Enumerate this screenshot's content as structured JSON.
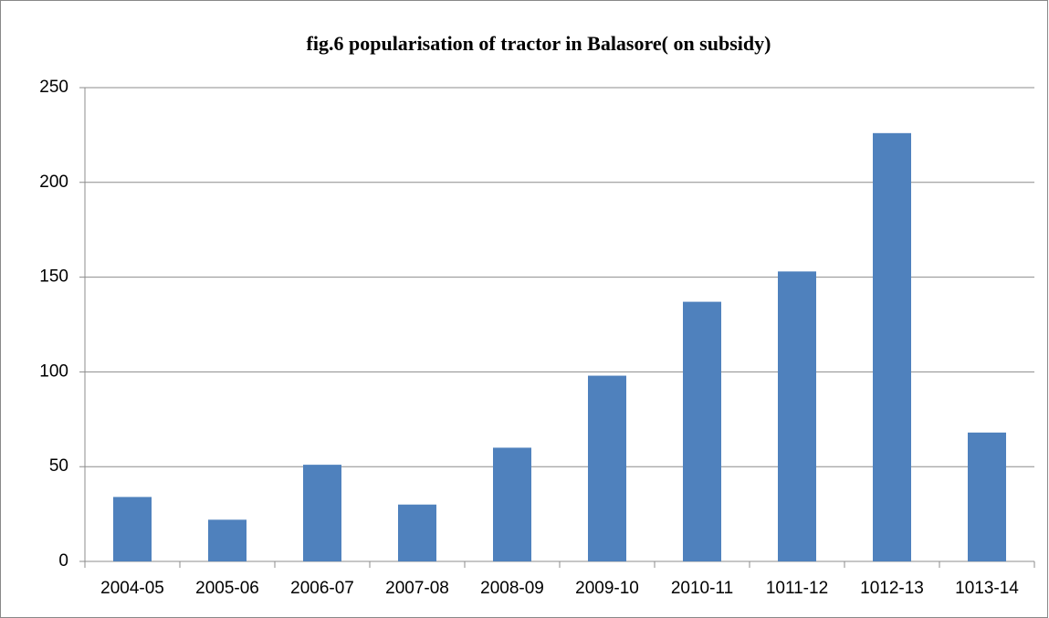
{
  "chart_data": {
    "type": "bar",
    "title": "fig.6 popularisation of tractor in Balasore( on subsidy)",
    "categories": [
      "2004-05",
      "2005-06",
      "2006-07",
      "2007-08",
      "2008-09",
      "2009-10",
      "2010-11",
      "1011-12",
      "1012-13",
      "1013-14"
    ],
    "values": [
      34,
      22,
      51,
      30,
      60,
      98,
      137,
      153,
      226,
      68
    ],
    "color": "#4f81bd",
    "ylim": [
      0,
      250
    ],
    "yticks": [
      0,
      50,
      100,
      150,
      200,
      250
    ],
    "grid": true
  }
}
